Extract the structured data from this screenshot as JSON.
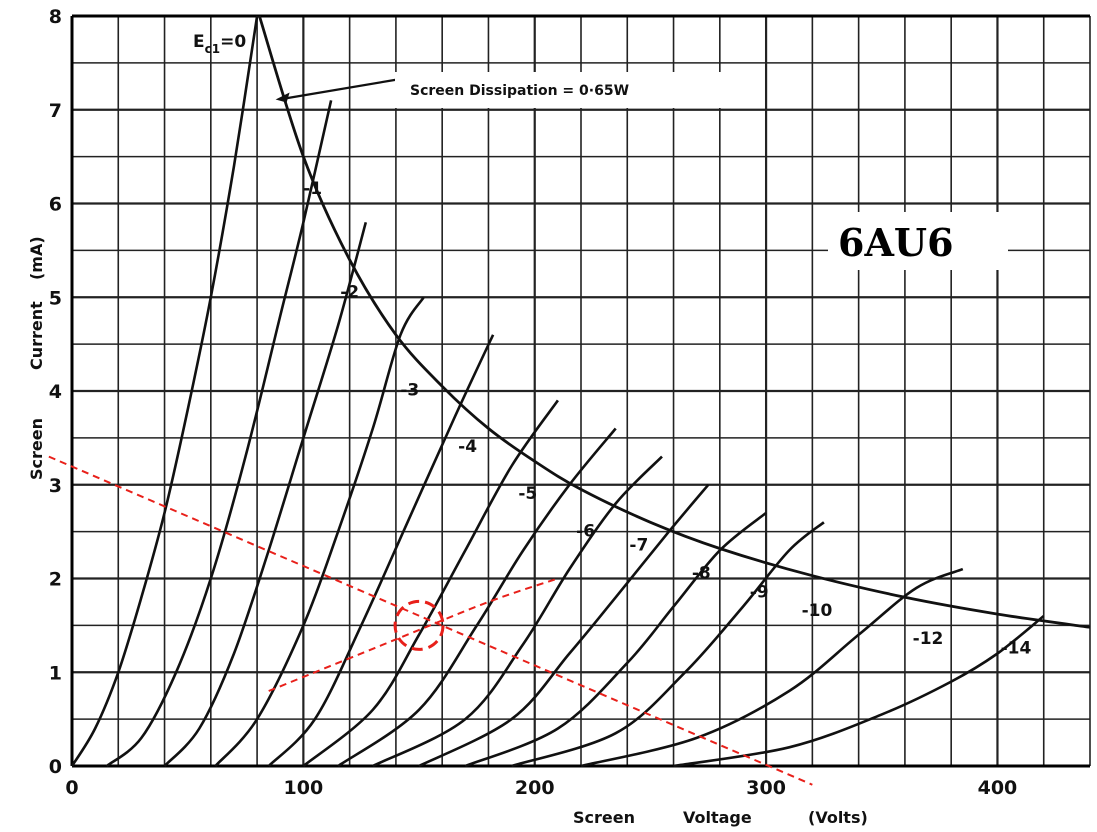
{
  "chart_data": {
    "type": "line",
    "title": "6AU6",
    "xlabel": "Screen  Voltage  (Volts)",
    "ylabel": "Screen  Current  (mA)",
    "xlim": [
      0,
      440
    ],
    "ylim": [
      0,
      8
    ],
    "x_ticks": [
      0,
      100,
      200,
      300,
      400
    ],
    "x_tick_labels": [
      "0",
      "100",
      "200",
      "300",
      "400"
    ],
    "y_ticks": [
      0,
      1,
      2,
      3,
      4,
      5,
      6,
      7,
      8
    ],
    "y_tick_labels": [
      "0",
      "1",
      "2",
      "3",
      "4",
      "5",
      "6",
      "7",
      "8"
    ],
    "grid": true,
    "series": [
      {
        "name": "Ec1=0",
        "points": [
          [
            0,
            0
          ],
          [
            10,
            0.4
          ],
          [
            20,
            1.0
          ],
          [
            30,
            1.8
          ],
          [
            40,
            2.7
          ],
          [
            50,
            3.8
          ],
          [
            60,
            5.0
          ],
          [
            70,
            6.4
          ],
          [
            80,
            8.0
          ]
        ]
      },
      {
        "name": "-1",
        "points": [
          [
            15,
            0
          ],
          [
            30,
            0.3
          ],
          [
            45,
            1.0
          ],
          [
            60,
            2.0
          ],
          [
            75,
            3.3
          ],
          [
            90,
            4.8
          ],
          [
            100,
            5.8
          ],
          [
            112,
            7.1
          ]
        ]
      },
      {
        "name": "-2",
        "points": [
          [
            40,
            0
          ],
          [
            55,
            0.4
          ],
          [
            70,
            1.2
          ],
          [
            85,
            2.3
          ],
          [
            100,
            3.5
          ],
          [
            115,
            4.7
          ],
          [
            127,
            5.8
          ]
        ]
      },
      {
        "name": "-3",
        "points": [
          [
            62,
            0
          ],
          [
            80,
            0.5
          ],
          [
            100,
            1.5
          ],
          [
            115,
            2.5
          ],
          [
            130,
            3.6
          ],
          [
            142,
            4.6
          ],
          [
            152,
            5.0
          ]
        ]
      },
      {
        "name": "-4",
        "points": [
          [
            85,
            0
          ],
          [
            105,
            0.5
          ],
          [
            125,
            1.5
          ],
          [
            145,
            2.6
          ],
          [
            165,
            3.7
          ],
          [
            182,
            4.6
          ]
        ]
      },
      {
        "name": "-5",
        "points": [
          [
            100,
            0
          ],
          [
            130,
            0.6
          ],
          [
            150,
            1.4
          ],
          [
            170,
            2.3
          ],
          [
            190,
            3.2
          ],
          [
            210,
            3.9
          ]
        ]
      },
      {
        "name": "-6",
        "points": [
          [
            115,
            0
          ],
          [
            150,
            0.6
          ],
          [
            175,
            1.5
          ],
          [
            195,
            2.3
          ],
          [
            215,
            3.0
          ],
          [
            235,
            3.6
          ]
        ]
      },
      {
        "name": "-7",
        "points": [
          [
            130,
            0
          ],
          [
            170,
            0.5
          ],
          [
            195,
            1.3
          ],
          [
            215,
            2.1
          ],
          [
            235,
            2.8
          ],
          [
            255,
            3.3
          ]
        ]
      },
      {
        "name": "-8",
        "points": [
          [
            150,
            0
          ],
          [
            190,
            0.5
          ],
          [
            215,
            1.2
          ],
          [
            235,
            1.8
          ],
          [
            258,
            2.5
          ],
          [
            275,
            3.0
          ]
        ]
      },
      {
        "name": "-9",
        "points": [
          [
            170,
            0
          ],
          [
            210,
            0.4
          ],
          [
            240,
            1.1
          ],
          [
            260,
            1.7
          ],
          [
            280,
            2.3
          ],
          [
            300,
            2.7
          ]
        ]
      },
      {
        "name": "-10",
        "points": [
          [
            190,
            0
          ],
          [
            235,
            0.35
          ],
          [
            265,
            1.0
          ],
          [
            290,
            1.7
          ],
          [
            310,
            2.3
          ],
          [
            325,
            2.6
          ]
        ]
      },
      {
        "name": "-12",
        "points": [
          [
            220,
            0
          ],
          [
            270,
            0.3
          ],
          [
            310,
            0.8
          ],
          [
            340,
            1.4
          ],
          [
            365,
            1.9
          ],
          [
            385,
            2.1
          ]
        ]
      },
      {
        "name": "-14",
        "points": [
          [
            260,
            0
          ],
          [
            310,
            0.2
          ],
          [
            350,
            0.55
          ],
          [
            380,
            0.9
          ],
          [
            400,
            1.2
          ],
          [
            420,
            1.6
          ]
        ]
      }
    ],
    "dissipation_curve": {
      "label": "Screen  Dissipation  =  0·65W",
      "points": [
        [
          81,
          8.0
        ],
        [
          100,
          6.5
        ],
        [
          120,
          5.4
        ],
        [
          140,
          4.6
        ],
        [
          160,
          4.05
        ],
        [
          180,
          3.6
        ],
        [
          200,
          3.25
        ],
        [
          220,
          2.95
        ],
        [
          250,
          2.6
        ],
        [
          280,
          2.32
        ],
        [
          320,
          2.03
        ],
        [
          360,
          1.8
        ],
        [
          400,
          1.62
        ],
        [
          440,
          1.48
        ]
      ]
    },
    "annotations": {
      "load_line": {
        "points": [
          [
            -10,
            3.3
          ],
          [
            320,
            -0.2
          ]
        ],
        "color": "#e8201a",
        "style": "dashed"
      },
      "second_line": {
        "points": [
          [
            85,
            0.8
          ],
          [
            140,
            1.35
          ],
          [
            180,
            1.75
          ],
          [
            210,
            2.0
          ]
        ],
        "color": "#e8201a",
        "style": "dashed"
      },
      "operating_point_circle": {
        "center": [
          150,
          1.5
        ],
        "color": "#e8201a",
        "style": "dashed"
      }
    }
  },
  "labels": {
    "ec1_label": "E",
    "ec1_sub": "c1",
    "ec1_suffix": "=0",
    "dissipation": "Screen    Dissipation  =  0·65W",
    "xlabel_part1": "Screen",
    "xlabel_part2": "Voltage",
    "xlabel_part3": "(Volts)",
    "ylabel_part1": "Screen",
    "ylabel_part2": "Current",
    "ylabel_part3": "(mA)",
    "title": "6AU6"
  },
  "colors": {
    "grid": "#222222",
    "curve": "#111111",
    "accent": "#e8201a",
    "background": "#ffffff"
  }
}
